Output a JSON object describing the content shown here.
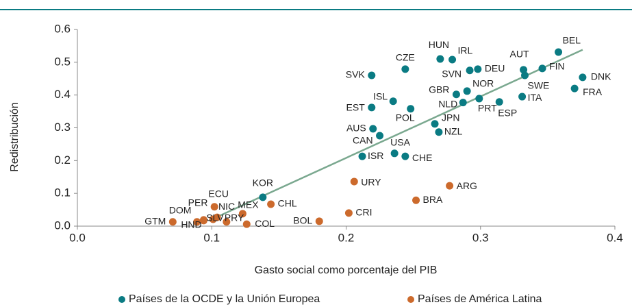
{
  "chart_data": {
    "type": "scatter",
    "xlabel": "Gasto social como porcentaje del PIB",
    "ylabel": "Redistribución",
    "xlim": [
      0,
      0.4
    ],
    "ylim": [
      0,
      0.6
    ],
    "xticks": [
      {
        "value": 0,
        "label": "0.0"
      },
      0.1,
      0.2,
      0.3,
      0.4
    ],
    "yticks": [
      {
        "value": 0,
        "label": "0.0"
      },
      0.1,
      0.2,
      0.3,
      0.4,
      0.5,
      0.6
    ],
    "trend": {
      "color": "#7aa88f",
      "x": [
        0.098,
        0.376
      ],
      "y": [
        0.017,
        0.538
      ]
    },
    "series": [
      {
        "name": "Países de la OCDE y la Unión Europea",
        "color": "#0a7b83",
        "labels": [
          "BEL",
          "DNK",
          "FRA",
          "FIN",
          "SWE",
          "AUT",
          "HUN",
          "IRL",
          "CZE",
          "SVK",
          "DEU",
          "SVN",
          "NOR",
          "GBR",
          "ITA",
          "NLD",
          "PRT",
          "ESP",
          "ISL",
          "EST",
          "POL",
          "JPN",
          "NZL",
          "AUS",
          "CAN",
          "USA",
          "ISR",
          "CHE",
          "KOR"
        ],
        "x": [
          0.358,
          0.376,
          0.37,
          0.346,
          0.333,
          0.332,
          0.27,
          0.279,
          0.244,
          0.219,
          0.298,
          0.292,
          0.29,
          0.282,
          0.331,
          0.287,
          0.299,
          0.314,
          0.235,
          0.219,
          0.248,
          0.266,
          0.269,
          0.22,
          0.225,
          0.236,
          0.212,
          0.244,
          0.138
        ],
        "values": [
          0.531,
          0.454,
          0.42,
          0.481,
          0.46,
          0.477,
          0.51,
          0.508,
          0.479,
          0.46,
          0.479,
          0.475,
          0.412,
          0.402,
          0.395,
          0.377,
          0.389,
          0.379,
          0.381,
          0.362,
          0.358,
          0.312,
          0.287,
          0.297,
          0.276,
          0.222,
          0.213,
          0.213,
          0.088
        ]
      },
      {
        "name": "Países de América Latina",
        "color": "#cc6a2c",
        "labels": [
          "URY",
          "ARG",
          "BRA",
          "CRI",
          "BOL",
          "ECU",
          "CHL",
          "MEX",
          "NIC",
          "PER",
          "DOM",
          "GTM",
          "HND",
          "SLV",
          "PRY",
          "COL"
        ],
        "x": [
          0.206,
          0.277,
          0.252,
          0.202,
          0.18,
          0.102,
          0.144,
          0.123,
          0.104,
          0.094,
          0.094,
          0.071,
          0.089,
          0.101,
          0.111,
          0.126
        ],
        "values": [
          0.136,
          0.123,
          0.079,
          0.04,
          0.015,
          0.059,
          0.067,
          0.038,
          0.027,
          0.019,
          0.017,
          0.013,
          0.013,
          0.021,
          0.013,
          0.006
        ]
      }
    ]
  }
}
